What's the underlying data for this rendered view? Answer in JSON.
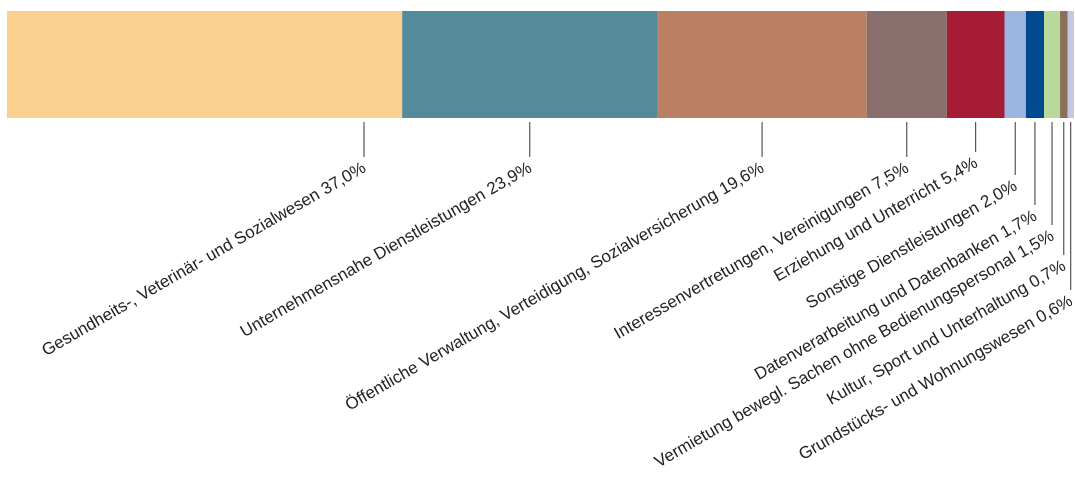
{
  "chart_data": {
    "type": "stacked_bar",
    "categories": [
      "Gesundheits-, Veterinär- und Sozialwesen",
      "Unternehmensnahe Dienstleistungen",
      "Öffentliche Verwaltung, Verteidigung, Sozialversicherung",
      "Interessenvertretungen, Vereinigungen",
      "Erziehung und Unterricht",
      "Sonstige Dienstleistungen",
      "Datenverarbeitung und Datenbanken",
      "Vermietung bewegl. Sachen ohne Bedienungspersonal",
      "Kultur, Sport und Unterhaltung",
      "Grundstücks- und Wohnungswesen"
    ],
    "values": [
      37.0,
      23.9,
      19.6,
      7.5,
      5.4,
      2.0,
      1.7,
      1.5,
      0.7,
      0.6
    ],
    "value_labels": [
      "37,0%",
      "23,9%",
      "19,6%",
      "7,5%",
      "5,4%",
      "2,0%",
      "1,7%",
      "1,5%",
      "0,7%",
      "0,6%"
    ],
    "colors": [
      "#fbd08f",
      "#548b9b",
      "#b98063",
      "#8a6f6f",
      "#a61c35",
      "#9cb5e0",
      "#00498f",
      "#b9d99a",
      "#8a6f5a",
      "#c5c8e0"
    ],
    "xlim": [
      0,
      100
    ]
  }
}
